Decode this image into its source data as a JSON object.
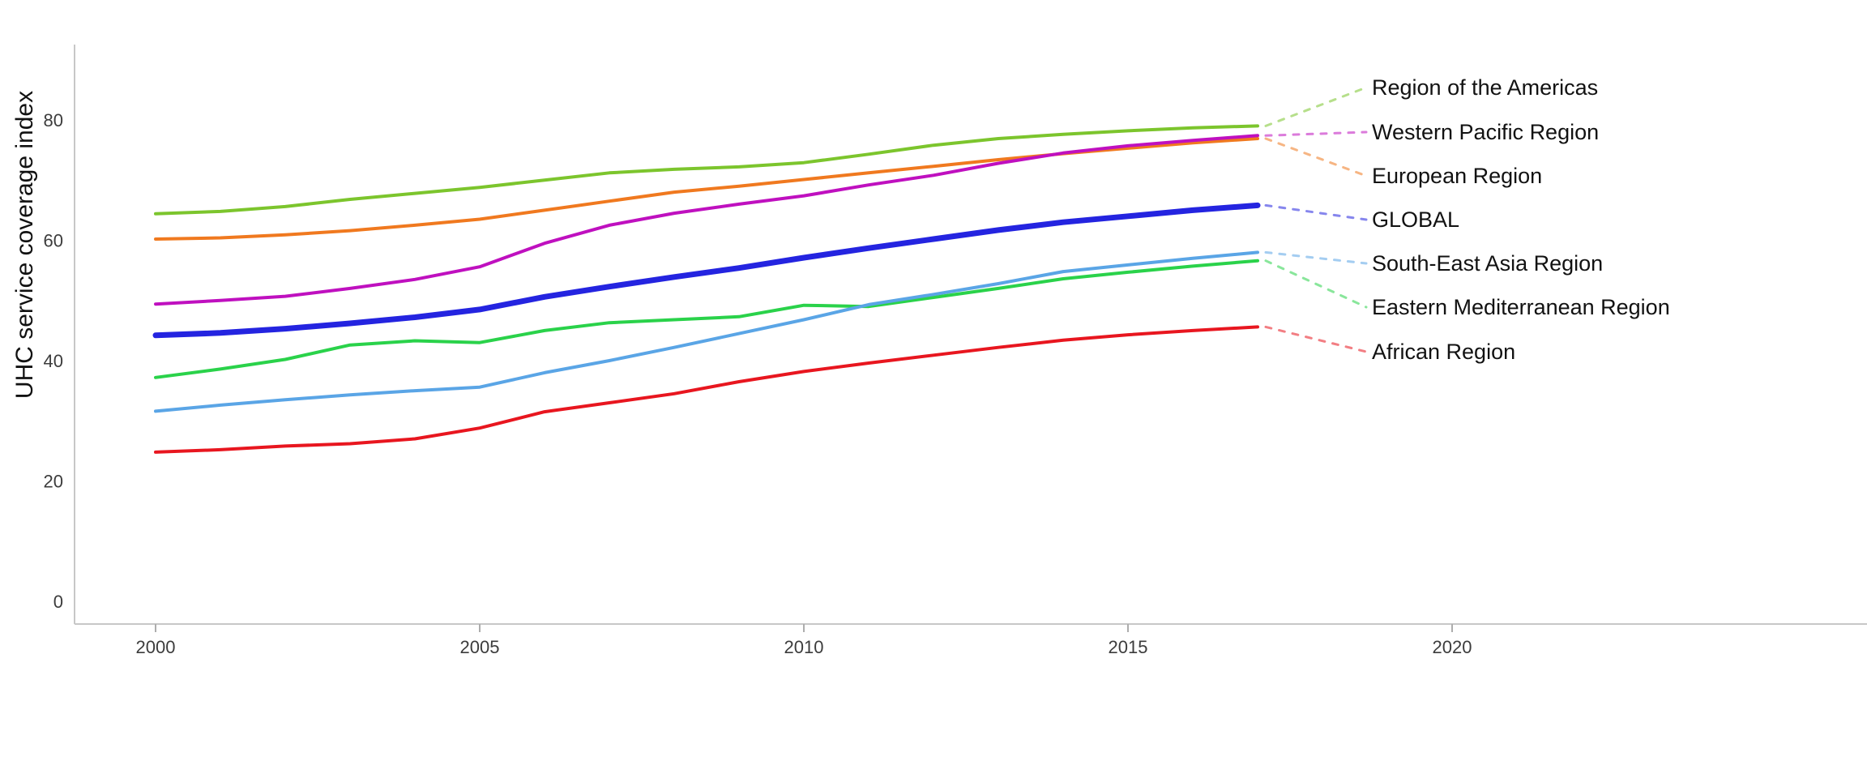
{
  "chart_data": {
    "type": "line",
    "title": "",
    "ylabel": "UHC service coverage index",
    "xlabel": "",
    "grid": false,
    "legend_position": "right-edge-labels-with-dashed-leaders",
    "x": [
      2000,
      2001,
      2002,
      2003,
      2004,
      2005,
      2006,
      2007,
      2008,
      2009,
      2010,
      2011,
      2012,
      2013,
      2014,
      2015,
      2016,
      2017
    ],
    "x_ticks": [
      2000,
      2005,
      2010,
      2015,
      2020
    ],
    "x_tick_labels": [
      "2000",
      "2005",
      "2010",
      "2015",
      "2020"
    ],
    "y_ticks": [
      0,
      20,
      40,
      60,
      80
    ],
    "y_tick_labels": [
      "0",
      "20",
      "40",
      "60",
      "80"
    ],
    "xlim": [
      1998.75,
      2026.4
    ],
    "ylim": [
      -3.8,
      92.5
    ],
    "axis_color": "#c7c7c7",
    "tick_mark_color": "#adadad",
    "series": [
      {
        "name": "Region of the Americas",
        "color": "#7cc52d",
        "line_width": 4,
        "values": [
          64.4,
          64.8,
          65.6,
          66.8,
          67.8,
          68.8,
          70.0,
          71.2,
          71.8,
          72.2,
          72.9,
          74.3,
          75.8,
          76.9,
          77.6,
          78.2,
          78.7,
          79.0
        ]
      },
      {
        "name": "Western Pacific Region",
        "color": "#bf10bf",
        "line_width": 4,
        "values": [
          49.4,
          50.0,
          50.7,
          52.0,
          53.5,
          55.6,
          59.5,
          62.5,
          64.5,
          66.0,
          67.4,
          69.2,
          70.8,
          72.8,
          74.5,
          75.7,
          76.6,
          77.4
        ]
      },
      {
        "name": "European Region",
        "color": "#f0791f",
        "line_width": 4,
        "values": [
          60.2,
          60.4,
          60.9,
          61.6,
          62.5,
          63.5,
          65.0,
          66.5,
          68.0,
          69.0,
          70.1,
          71.2,
          72.3,
          73.4,
          74.4,
          75.3,
          76.2,
          76.9
        ]
      },
      {
        "name": "GLOBAL",
        "color": "#2424e0",
        "line_width": 7,
        "values": [
          44.2,
          44.6,
          45.3,
          46.2,
          47.2,
          48.5,
          50.6,
          52.3,
          53.9,
          55.4,
          57.1,
          58.7,
          60.2,
          61.7,
          63.0,
          64.0,
          65.0,
          65.8
        ]
      },
      {
        "name": "South-East Asia Region",
        "color": "#5aa5e6",
        "line_width": 4,
        "values": [
          31.6,
          32.6,
          33.5,
          34.3,
          35.0,
          35.6,
          38.0,
          40.0,
          42.2,
          44.5,
          46.8,
          49.3,
          51.0,
          52.8,
          54.8,
          55.9,
          57.0,
          58.0
        ]
      },
      {
        "name": "Eastern Mediterranean Region",
        "color": "#2ad24a",
        "line_width": 4,
        "values": [
          37.2,
          38.6,
          40.2,
          42.6,
          43.3,
          43.0,
          45.0,
          46.3,
          46.8,
          47.3,
          49.2,
          49.0,
          50.5,
          52.0,
          53.6,
          54.7,
          55.7,
          56.6
        ]
      },
      {
        "name": "African Region",
        "color": "#e8161f",
        "line_width": 4,
        "values": [
          24.8,
          25.2,
          25.8,
          26.2,
          27.0,
          28.8,
          31.5,
          33.0,
          34.5,
          36.5,
          38.2,
          39.6,
          40.9,
          42.2,
          43.4,
          44.3,
          45.0,
          45.6
        ]
      }
    ]
  }
}
